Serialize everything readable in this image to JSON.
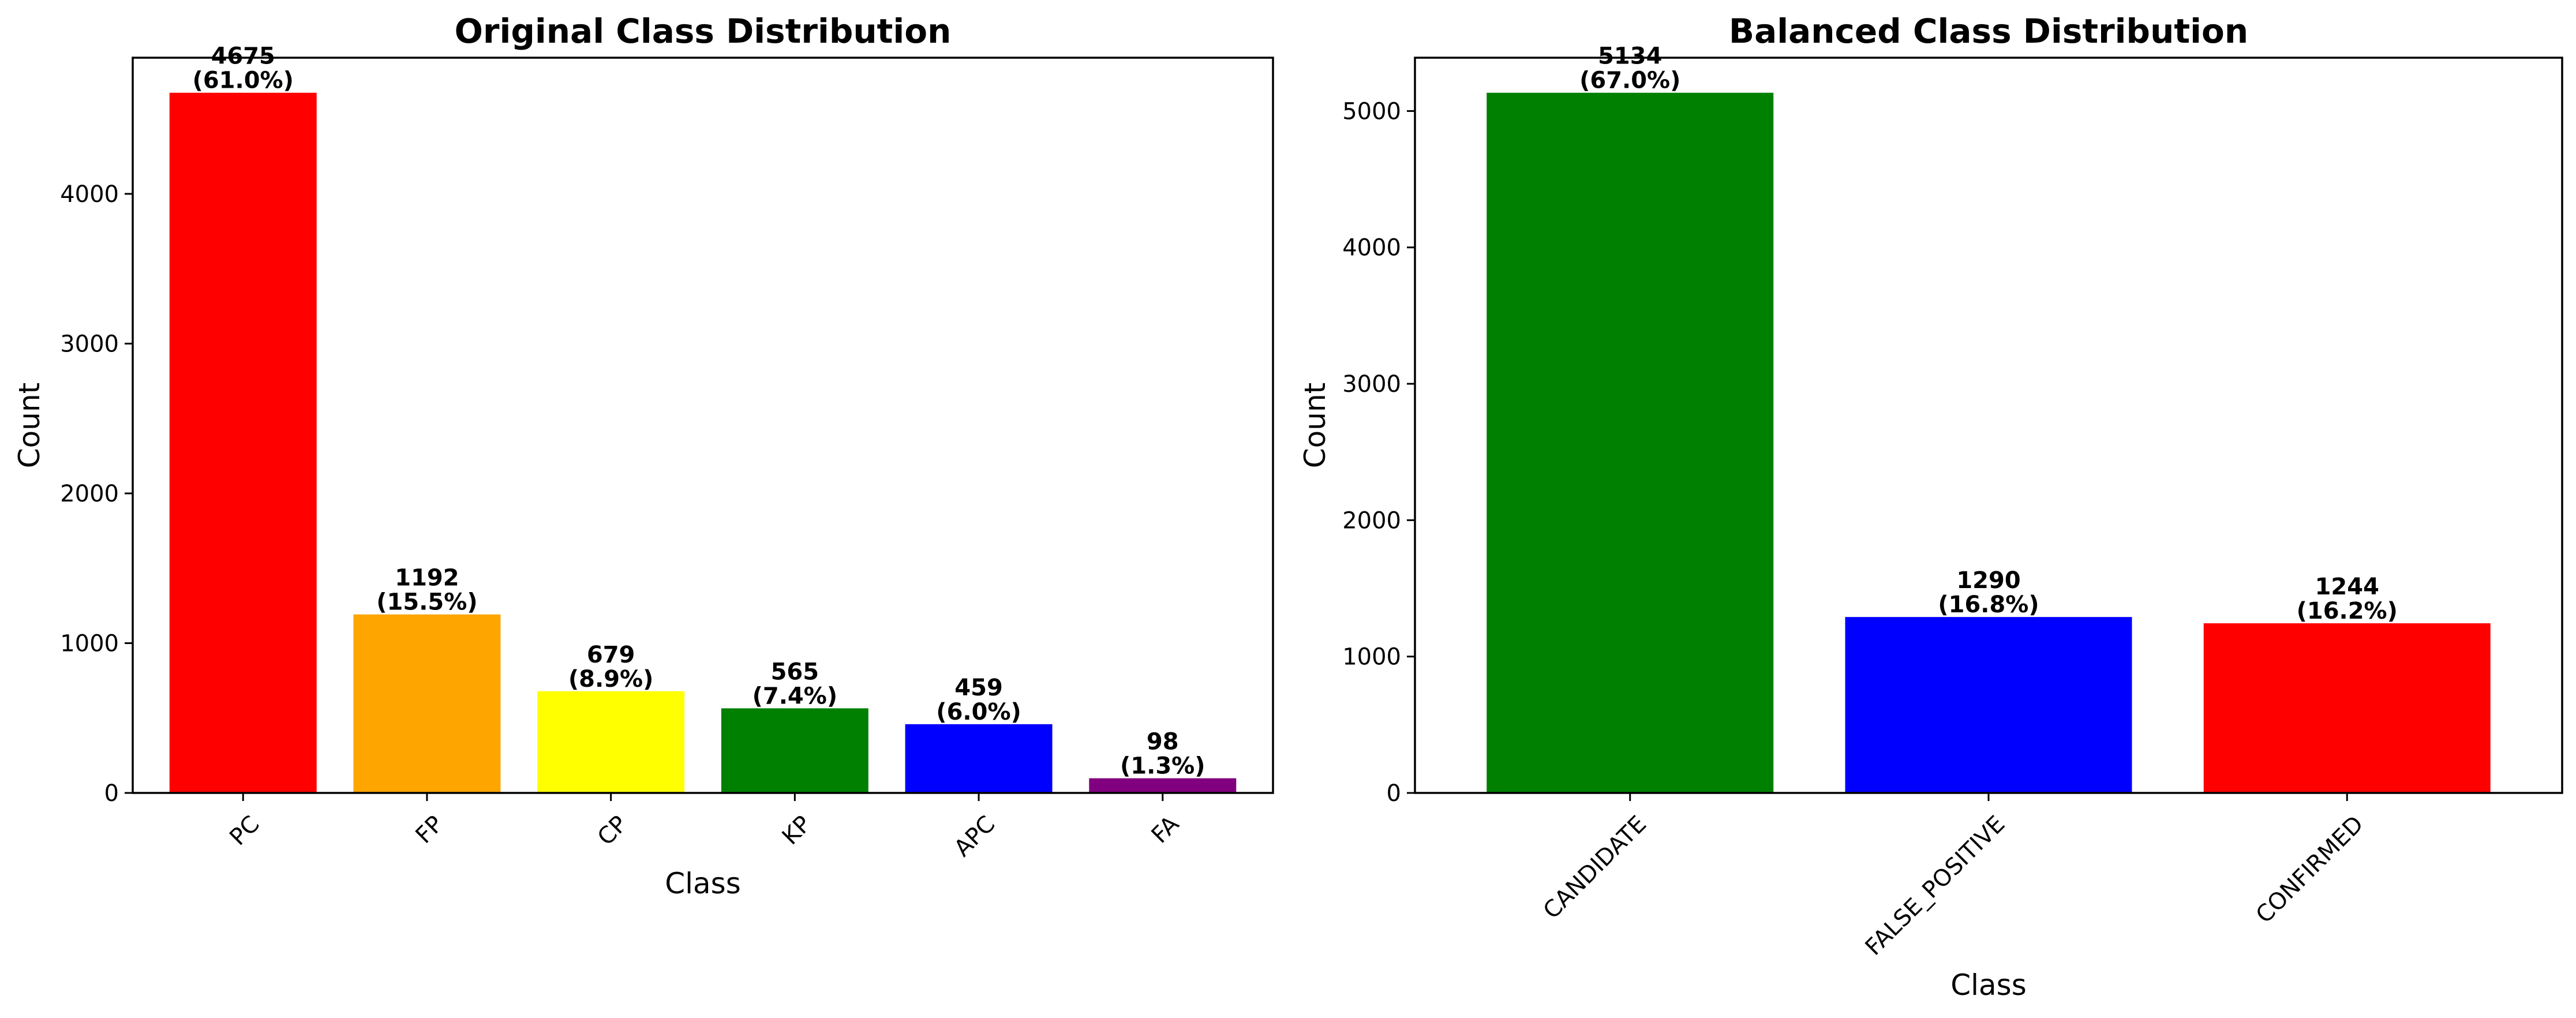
{
  "chart_data": [
    {
      "type": "bar",
      "title": "Original Class Distribution",
      "xlabel": "Class",
      "ylabel": "Count",
      "categories": [
        "PC",
        "FP",
        "CP",
        "KP",
        "APC",
        "FA"
      ],
      "values": [
        4675,
        1192,
        679,
        565,
        459,
        98
      ],
      "value_labels": [
        "4675",
        "1192",
        "679",
        "565",
        "459",
        "98"
      ],
      "percent_labels": [
        "(61.0%)",
        "(15.5%)",
        "(8.9%)",
        "(7.4%)",
        "(6.0%)",
        "(1.3%)"
      ],
      "colors": [
        "#ff0000",
        "#ffa500",
        "#ffff00",
        "#008000",
        "#0000ff",
        "#800080"
      ],
      "ylim": [
        0,
        4909
      ],
      "yticks": [
        0,
        1000,
        2000,
        3000,
        4000
      ],
      "ytick_labels": [
        "0",
        "1000",
        "2000",
        "3000",
        "4000"
      ],
      "xtick_rotation": 45,
      "grid": false,
      "legend": "none"
    },
    {
      "type": "bar",
      "title": "Balanced Class Distribution",
      "xlabel": "Class",
      "ylabel": "Count",
      "categories": [
        "CANDIDATE",
        "FALSE_POSITIVE",
        "CONFIRMED"
      ],
      "values": [
        5134,
        1290,
        1244
      ],
      "value_labels": [
        "5134",
        "1290",
        "1244"
      ],
      "percent_labels": [
        "(67.0%)",
        "(16.8%)",
        "(16.2%)"
      ],
      "colors": [
        "#008000",
        "#0000ff",
        "#ff0000"
      ],
      "ylim": [
        0,
        5391
      ],
      "yticks": [
        0,
        1000,
        2000,
        3000,
        4000,
        5000
      ],
      "ytick_labels": [
        "0",
        "1000",
        "2000",
        "3000",
        "4000",
        "5000"
      ],
      "xtick_rotation": 45,
      "grid": false,
      "legend": "none"
    }
  ]
}
